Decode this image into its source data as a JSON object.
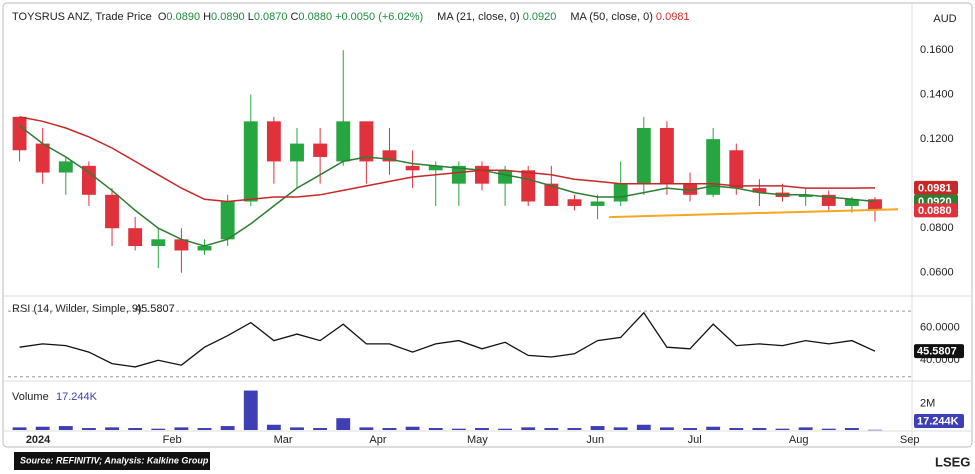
{
  "chart_data": {
    "type": "candlestick",
    "header": {
      "title": "TOYSRUS ANZ, Trade Price",
      "ohlc": [
        {
          "label": "O",
          "value": "0.0890"
        },
        {
          "label": "H",
          "value": "0.0890"
        },
        {
          "label": "L",
          "value": "0.0870"
        },
        {
          "label": "C",
          "value": "0.0880"
        }
      ],
      "change": "+0.0050 (+6.02%)",
      "ma": [
        {
          "label": "MA (21, close, 0)",
          "value": "0.0920"
        },
        {
          "label": "MA (50, close, 0)",
          "value": "0.0981"
        }
      ]
    },
    "currency": "AUD",
    "xlim": [
      -0.5,
      38.6
    ],
    "xticks": [
      {
        "value": 0.8,
        "label": "2024"
      },
      {
        "value": 6.6,
        "label": "Feb"
      },
      {
        "value": 11.4,
        "label": "Mar"
      },
      {
        "value": 15.5,
        "label": "Apr"
      },
      {
        "value": 19.8,
        "label": "May"
      },
      {
        "value": 24.9,
        "label": "Jun"
      },
      {
        "value": 29.2,
        "label": "Jul"
      },
      {
        "value": 33.7,
        "label": "Aug"
      },
      {
        "value": 38.5,
        "label": "Sep"
      }
    ],
    "ylim": [
      0.05,
      0.178
    ],
    "yticks": [
      {
        "value": 0.06,
        "label": "0.0600"
      },
      {
        "value": 0.08,
        "label": "0.0800"
      },
      {
        "value": 0.12,
        "label": "0.1200"
      },
      {
        "value": 0.14,
        "label": "0.1400"
      },
      {
        "value": 0.16,
        "label": "0.1600"
      }
    ],
    "up_color": "#26a641",
    "down_color": "#e0323c",
    "candles": {
      "open": [
        0.13,
        0.118,
        0.105,
        0.108,
        0.095,
        0.08,
        0.072,
        0.075,
        0.07,
        0.075,
        0.092,
        0.128,
        0.11,
        0.118,
        0.11,
        0.128,
        0.115,
        0.108,
        0.106,
        0.1,
        0.108,
        0.1,
        0.106,
        0.1,
        0.093,
        0.09,
        0.092,
        0.1,
        0.125,
        0.1,
        0.095,
        0.115,
        0.098,
        0.096,
        0.094,
        0.095,
        0.09,
        0.093
      ],
      "high": [
        0.13,
        0.125,
        0.112,
        0.11,
        0.098,
        0.085,
        0.08,
        0.08,
        0.075,
        0.095,
        0.14,
        0.13,
        0.125,
        0.125,
        0.16,
        0.128,
        0.125,
        0.115,
        0.11,
        0.11,
        0.11,
        0.108,
        0.108,
        0.108,
        0.095,
        0.095,
        0.11,
        0.13,
        0.128,
        0.105,
        0.125,
        0.118,
        0.102,
        0.1,
        0.098,
        0.097,
        0.094,
        0.094
      ],
      "low": [
        0.11,
        0.1,
        0.095,
        0.09,
        0.072,
        0.07,
        0.062,
        0.06,
        0.068,
        0.072,
        0.09,
        0.1,
        0.098,
        0.1,
        0.108,
        0.1,
        0.104,
        0.098,
        0.09,
        0.09,
        0.097,
        0.09,
        0.09,
        0.09,
        0.088,
        0.084,
        0.09,
        0.095,
        0.095,
        0.092,
        0.094,
        0.095,
        0.09,
        0.092,
        0.09,
        0.088,
        0.087,
        0.083
      ],
      "close": [
        0.115,
        0.105,
        0.11,
        0.095,
        0.08,
        0.072,
        0.075,
        0.07,
        0.072,
        0.092,
        0.128,
        0.11,
        0.118,
        0.112,
        0.128,
        0.11,
        0.11,
        0.106,
        0.108,
        0.108,
        0.1,
        0.106,
        0.092,
        0.09,
        0.09,
        0.092,
        0.1,
        0.125,
        0.1,
        0.095,
        0.12,
        0.098,
        0.096,
        0.094,
        0.095,
        0.09,
        0.093,
        0.088
      ]
    },
    "series": [
      {
        "name": "MA (21, close, 0)",
        "color": "#2e7d32",
        "values": [
          0.126,
          0.118,
          0.112,
          0.105,
          0.097,
          0.088,
          0.08,
          0.075,
          0.072,
          0.075,
          0.082,
          0.09,
          0.098,
          0.104,
          0.11,
          0.112,
          0.111,
          0.109,
          0.108,
          0.107,
          0.106,
          0.104,
          0.102,
          0.099,
          0.096,
          0.094,
          0.094,
          0.096,
          0.098,
          0.097,
          0.099,
          0.098,
          0.096,
          0.095,
          0.095,
          0.094,
          0.093,
          0.092
        ]
      },
      {
        "name": "MA (50, close, 0)",
        "color": "#c62828",
        "values": [
          0.13,
          0.128,
          0.125,
          0.121,
          0.116,
          0.11,
          0.104,
          0.098,
          0.093,
          0.092,
          0.093,
          0.094,
          0.094,
          0.095,
          0.097,
          0.099,
          0.101,
          0.103,
          0.104,
          0.105,
          0.106,
          0.106,
          0.105,
          0.104,
          0.102,
          0.101,
          0.1,
          0.1,
          0.1,
          0.1,
          0.1,
          0.099,
          0.099,
          0.099,
          0.098,
          0.098,
          0.098,
          0.0981
        ]
      }
    ],
    "price_tags": [
      {
        "value": 0.0981,
        "label": "0.0981",
        "color": "#c62828"
      },
      {
        "value": 0.092,
        "label": "0.0920",
        "color": "#2e7d32"
      },
      {
        "value": 0.088,
        "label": "0.0880",
        "color": "#e0323c"
      }
    ],
    "trendline": {
      "x": [
        25.5,
        38.0
      ],
      "y": [
        0.085,
        0.0885
      ],
      "color": "#f5a623"
    },
    "rsi": {
      "label": "RSI (14, Wilder, Simple, 9)",
      "value_label": "45.5807",
      "color": "#111111",
      "values": [
        48,
        50,
        49,
        45,
        38,
        36,
        40,
        37,
        48,
        55,
        63,
        52,
        56,
        52,
        62,
        50,
        50,
        45,
        50,
        52,
        47,
        51,
        43,
        42,
        44,
        52,
        54,
        69,
        48,
        47,
        62,
        49,
        50,
        49,
        52,
        50,
        52,
        45.5807
      ],
      "ylim": [
        28,
        78
      ],
      "yticks": [
        {
          "value": 40,
          "label": "40.0000"
        },
        {
          "value": 60,
          "label": "60.0000"
        }
      ],
      "levels": [
        70,
        30
      ]
    },
    "volume": {
      "label": "Volume",
      "value_label": "17.244K",
      "color": "#3f3fb5",
      "values": [
        200000,
        250000,
        300000,
        150000,
        200000,
        150000,
        100000,
        200000,
        150000,
        300000,
        3000000,
        400000,
        200000,
        150000,
        900000,
        200000,
        150000,
        250000,
        150000,
        100000,
        150000,
        100000,
        200000,
        150000,
        150000,
        300000,
        200000,
        400000,
        200000,
        150000,
        250000,
        150000,
        150000,
        100000,
        200000,
        100000,
        150000,
        17244
      ],
      "ylim": [
        0,
        3500000
      ],
      "yticks": [
        {
          "value": 2000000,
          "label": "2M"
        }
      ]
    },
    "source": "Source: REFINITIV; Analysis: Kalkine Group",
    "logo": "LSEG"
  }
}
